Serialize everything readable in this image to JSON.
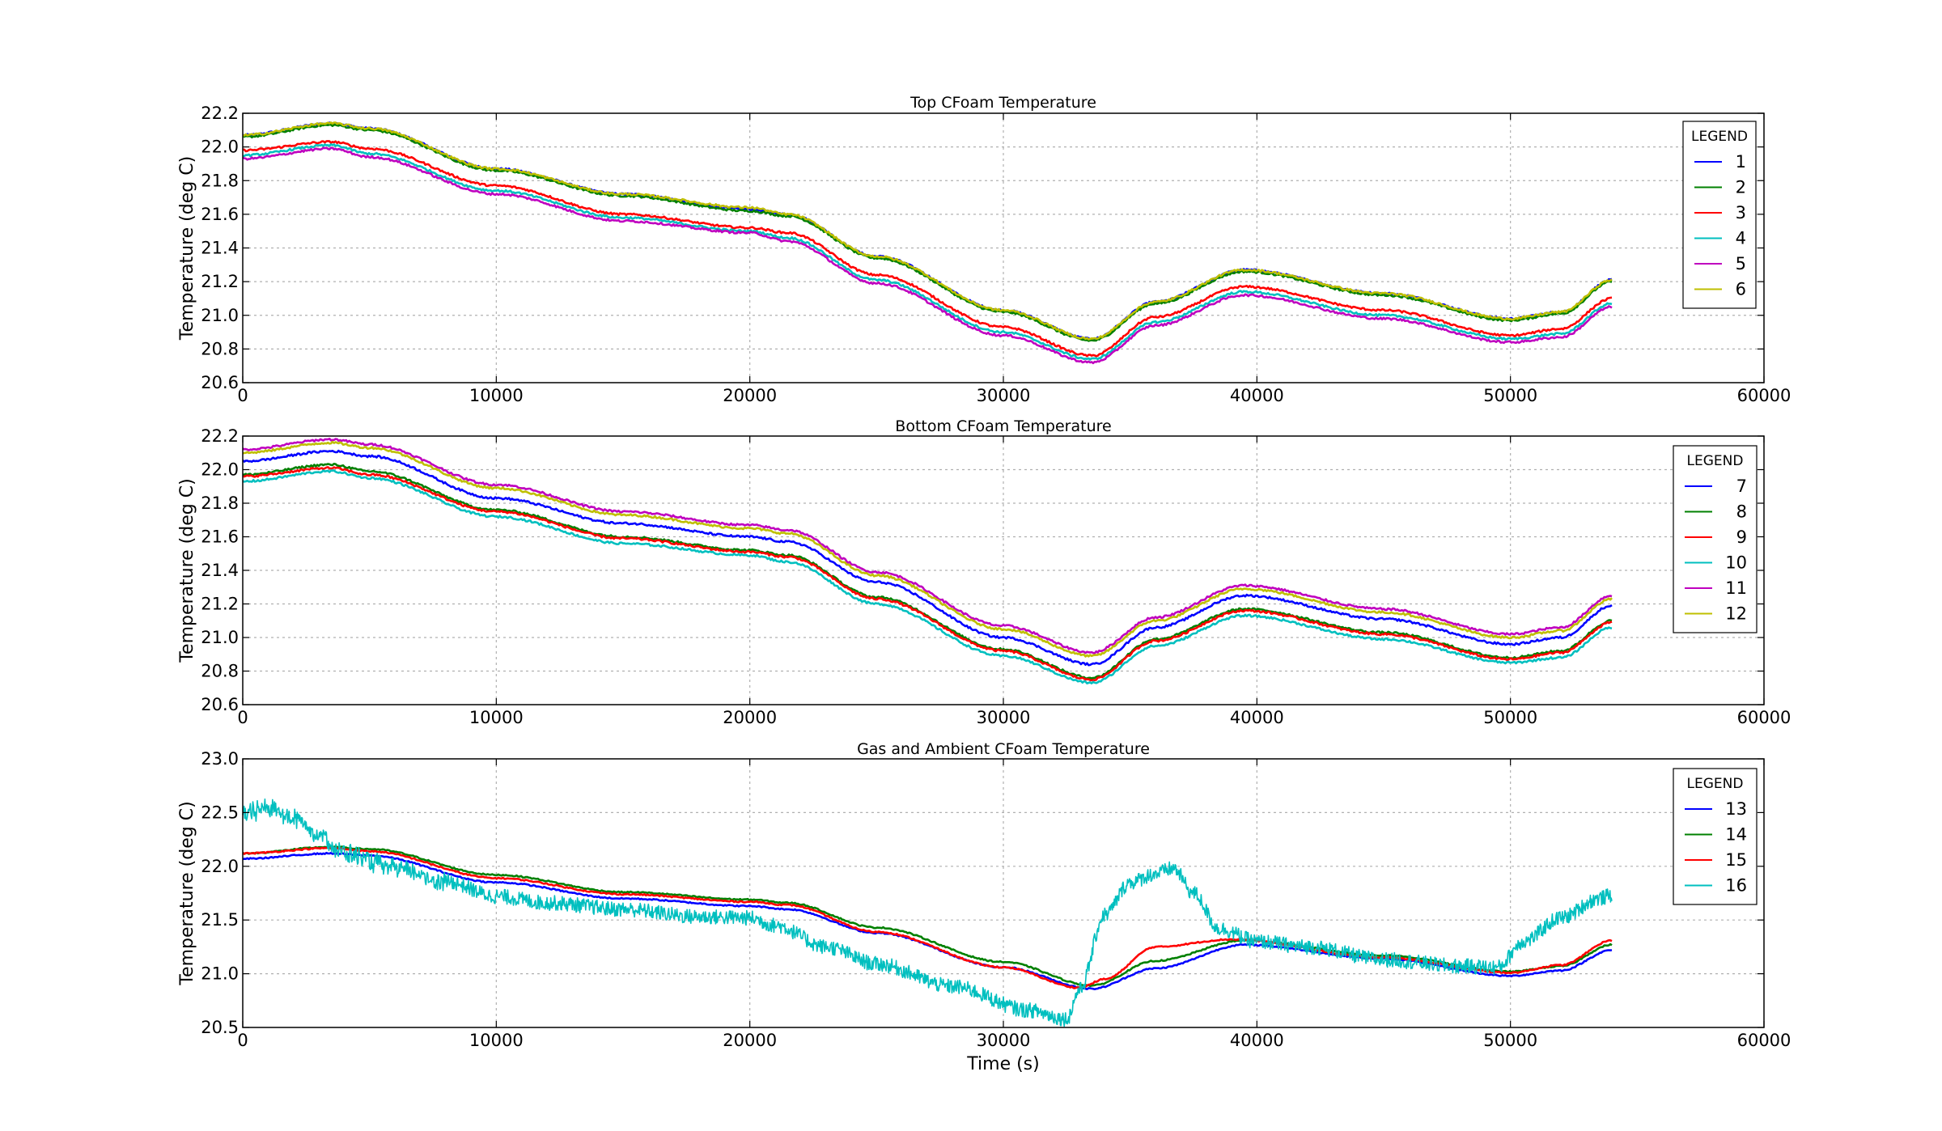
{
  "chart_data": [
    {
      "type": "line",
      "title": "Top CFoam Temperature",
      "xlabel": "",
      "ylabel": "Temperature (deg C)",
      "xlim": [
        0,
        60000
      ],
      "ylim": [
        20.6,
        22.2
      ],
      "xticks": [
        0,
        10000,
        20000,
        30000,
        40000,
        50000,
        60000
      ],
      "yticks": [
        20.6,
        20.8,
        21.0,
        21.2,
        21.4,
        21.6,
        21.8,
        22.0,
        22.2
      ],
      "grid": true,
      "legend": {
        "title": "LEGEND",
        "placement": "top-right"
      },
      "x": [
        0,
        3500,
        5000,
        10000,
        15000,
        20000,
        21500,
        25000,
        30000,
        33500,
        36000,
        39500,
        45000,
        50000,
        52000,
        54000
      ],
      "series": [
        {
          "name": "1",
          "color": "#0000ff",
          "values": [
            22.07,
            22.14,
            22.11,
            21.87,
            21.72,
            21.63,
            21.6,
            21.35,
            21.03,
            20.86,
            21.08,
            21.27,
            21.13,
            20.98,
            21.02,
            21.21
          ]
        },
        {
          "name": "2",
          "color": "#008000",
          "values": [
            22.06,
            22.13,
            22.1,
            21.86,
            21.71,
            21.62,
            21.59,
            21.34,
            21.02,
            20.85,
            21.07,
            21.26,
            21.12,
            20.97,
            21.01,
            21.2
          ]
        },
        {
          "name": "3",
          "color": "#ff0000",
          "values": [
            21.98,
            22.03,
            21.99,
            21.77,
            21.6,
            21.52,
            21.49,
            21.24,
            20.93,
            20.76,
            20.99,
            21.17,
            21.03,
            20.88,
            20.92,
            21.1
          ]
        },
        {
          "name": "4",
          "color": "#00bfbf",
          "values": [
            21.95,
            22.01,
            21.96,
            21.74,
            21.58,
            21.5,
            21.46,
            21.21,
            20.9,
            20.74,
            20.96,
            21.14,
            21.0,
            20.86,
            20.89,
            21.07
          ]
        },
        {
          "name": "5",
          "color": "#bf00bf",
          "values": [
            21.93,
            21.99,
            21.94,
            21.72,
            21.56,
            21.49,
            21.44,
            21.19,
            20.88,
            20.72,
            20.94,
            21.12,
            20.98,
            20.84,
            20.87,
            21.05
          ]
        },
        {
          "name": "6",
          "color": "#bfbf00",
          "values": [
            22.07,
            22.14,
            22.11,
            21.87,
            21.72,
            21.64,
            21.6,
            21.35,
            21.03,
            20.86,
            21.08,
            21.27,
            21.13,
            20.98,
            21.02,
            21.21
          ]
        }
      ]
    },
    {
      "type": "line",
      "title": "Bottom CFoam Temperature",
      "xlabel": "",
      "ylabel": "Temperature (deg C)",
      "xlim": [
        0,
        60000
      ],
      "ylim": [
        20.6,
        22.2
      ],
      "xticks": [
        0,
        10000,
        20000,
        30000,
        40000,
        50000,
        60000
      ],
      "yticks": [
        20.6,
        20.8,
        21.0,
        21.2,
        21.4,
        21.6,
        21.8,
        22.0,
        22.2
      ],
      "grid": true,
      "legend": {
        "title": "LEGEND",
        "placement": "top-right"
      },
      "x": [
        0,
        3500,
        5000,
        10000,
        15000,
        20000,
        21500,
        25000,
        30000,
        33500,
        36000,
        39500,
        45000,
        50000,
        52000,
        54000
      ],
      "series": [
        {
          "name": "7",
          "color": "#0000ff",
          "values": [
            22.05,
            22.11,
            22.08,
            21.83,
            21.68,
            21.6,
            21.57,
            21.33,
            21.0,
            20.84,
            21.06,
            21.25,
            21.11,
            20.96,
            21.0,
            21.19
          ]
        },
        {
          "name": "8",
          "color": "#008000",
          "values": [
            21.97,
            22.03,
            21.99,
            21.76,
            21.6,
            21.52,
            21.49,
            21.24,
            20.93,
            20.76,
            20.99,
            21.17,
            21.03,
            20.88,
            20.92,
            21.1
          ]
        },
        {
          "name": "9",
          "color": "#ff0000",
          "values": [
            21.96,
            22.01,
            21.97,
            21.75,
            21.59,
            21.51,
            21.48,
            21.23,
            20.92,
            20.75,
            20.98,
            21.16,
            21.02,
            20.87,
            20.91,
            21.09
          ]
        },
        {
          "name": "10",
          "color": "#00bfbf",
          "values": [
            21.93,
            21.99,
            21.95,
            21.72,
            21.56,
            21.49,
            21.45,
            21.2,
            20.89,
            20.73,
            20.95,
            21.13,
            20.99,
            20.85,
            20.88,
            21.06
          ]
        },
        {
          "name": "11",
          "color": "#bf00bf",
          "values": [
            22.12,
            22.18,
            22.15,
            21.91,
            21.75,
            21.67,
            21.64,
            21.39,
            21.07,
            20.91,
            21.12,
            21.31,
            21.17,
            21.02,
            21.06,
            21.25
          ]
        },
        {
          "name": "12",
          "color": "#bfbf00",
          "values": [
            22.1,
            22.16,
            22.13,
            21.89,
            21.73,
            21.65,
            21.62,
            21.37,
            21.05,
            20.89,
            21.1,
            21.29,
            21.15,
            21.0,
            21.04,
            21.23
          ]
        }
      ]
    },
    {
      "type": "line",
      "title": "Gas and Ambient CFoam Temperature",
      "xlabel": "Time (s)",
      "ylabel": "Temperature (deg C)",
      "xlim": [
        0,
        60000
      ],
      "ylim": [
        20.5,
        23.0
      ],
      "xticks": [
        0,
        10000,
        20000,
        30000,
        40000,
        50000,
        60000
      ],
      "yticks": [
        20.5,
        21.0,
        21.5,
        22.0,
        22.5,
        23.0
      ],
      "grid": true,
      "legend": {
        "title": "LEGEND",
        "placement": "top-right"
      },
      "series": [
        {
          "name": "13",
          "color": "#0000ff",
          "x": [
            0,
            3500,
            5000,
            10000,
            15000,
            20000,
            21500,
            25000,
            30000,
            33500,
            36000,
            39500,
            45000,
            50000,
            52000,
            54000
          ],
          "values": [
            22.07,
            22.12,
            22.1,
            21.85,
            21.7,
            21.63,
            21.6,
            21.38,
            21.06,
            20.86,
            21.05,
            21.27,
            21.14,
            20.98,
            21.03,
            21.22
          ]
        },
        {
          "name": "14",
          "color": "#008000",
          "x": [
            0,
            3500,
            5000,
            10000,
            15000,
            20000,
            21500,
            25000,
            30000,
            33500,
            36000,
            39500,
            45000,
            50000,
            52000,
            54000
          ],
          "values": [
            22.12,
            22.18,
            22.16,
            21.92,
            21.76,
            21.69,
            21.66,
            21.43,
            21.11,
            20.89,
            21.12,
            21.31,
            21.17,
            21.02,
            21.07,
            21.27
          ]
        },
        {
          "name": "15",
          "color": "#ff0000",
          "x": [
            0,
            3500,
            5000,
            10000,
            15000,
            20000,
            21500,
            25000,
            30000,
            33000,
            34000,
            36000,
            39000,
            45000,
            50000,
            52000,
            54000
          ],
          "values": [
            22.12,
            22.17,
            22.14,
            21.89,
            21.74,
            21.67,
            21.64,
            21.39,
            21.06,
            20.87,
            20.95,
            21.25,
            21.32,
            21.15,
            21.01,
            21.08,
            21.31
          ]
        },
        {
          "name": "16",
          "color": "#00bfbf",
          "x": [
            0,
            1000,
            2000,
            3000,
            4000,
            6000,
            8000,
            10000,
            12000,
            15000,
            18000,
            20000,
            21000,
            23000,
            25000,
            28000,
            31000,
            32500,
            33000,
            34000,
            35000,
            36000,
            36700,
            37500,
            38500,
            40000,
            42000,
            45000,
            48000,
            49500,
            50500,
            52000,
            53500,
            54000
          ],
          "values": [
            22.48,
            22.55,
            22.45,
            22.3,
            22.12,
            21.98,
            21.86,
            21.72,
            21.66,
            21.6,
            21.53,
            21.52,
            21.45,
            21.25,
            21.09,
            20.88,
            20.66,
            20.58,
            20.85,
            21.55,
            21.85,
            21.93,
            21.98,
            21.75,
            21.42,
            21.3,
            21.25,
            21.13,
            21.07,
            21.06,
            21.3,
            21.52,
            21.7,
            21.73
          ]
        }
      ]
    }
  ]
}
